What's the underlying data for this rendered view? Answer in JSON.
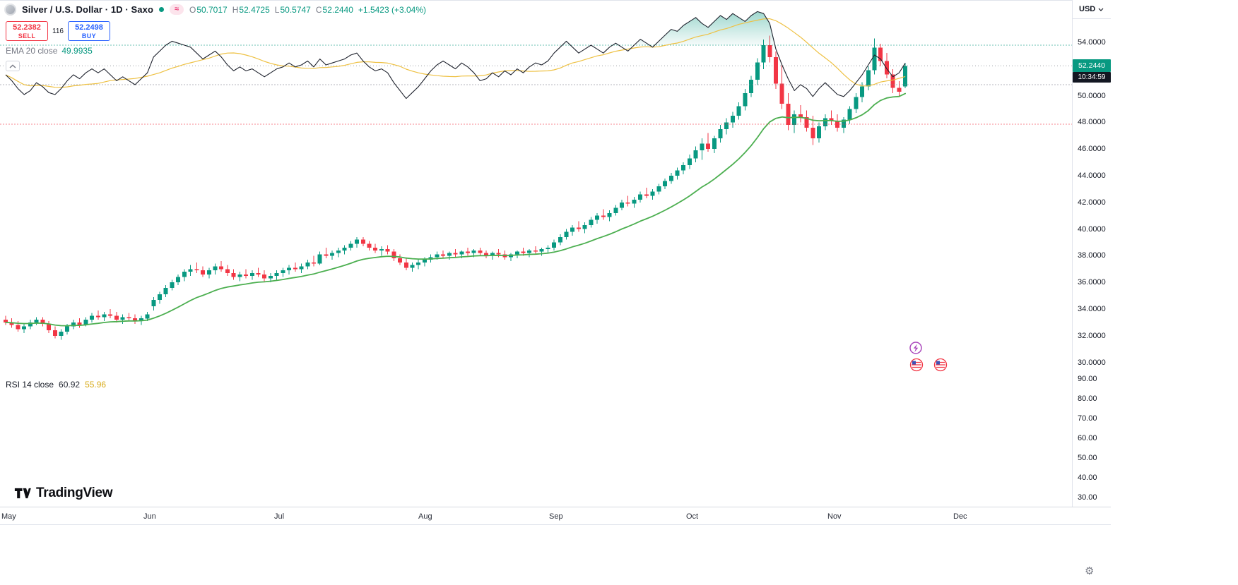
{
  "header": {
    "symbol_title": "Silver / U.S. Dollar · 1D · Saxo",
    "delayed_badge": "≈",
    "ohlc": {
      "o_label": "O",
      "o": "50.7017",
      "h_label": "H",
      "h": "52.4725",
      "l_label": "L",
      "l": "50.5747",
      "c_label": "C",
      "c": "52.2440",
      "change": "+1.5423 (+3.04%)"
    }
  },
  "trade_panel": {
    "sell_price": "52.2382",
    "sell_label": "SELL",
    "spread": "116",
    "buy_price": "52.2498",
    "buy_label": "BUY"
  },
  "ema_legend": {
    "label": "EMA 20 close",
    "value": "49.9935"
  },
  "rsi_legend": {
    "label": "RSI 14 close",
    "value": "60.92",
    "ma_value": "55.96"
  },
  "axis": {
    "currency": "USD",
    "current_price": "52.2440",
    "countdown": "10:34:59",
    "price_ticks": [
      "54.0000",
      "50.0000",
      "48.0000",
      "46.0000",
      "44.0000",
      "42.0000",
      "40.0000",
      "38.0000",
      "36.0000",
      "34.0000",
      "32.0000",
      "30.0000"
    ],
    "rsi_ticks": [
      "90.00",
      "80.00",
      "70.00",
      "60.00",
      "50.00",
      "40.00",
      "30.00"
    ]
  },
  "watermark": {
    "brand": "TradingView"
  },
  "colors": {
    "up": "#089981",
    "down": "#f23645",
    "ema": "#4caf50",
    "rsi_line": "#1e222d",
    "rsi_ma": "#eec143",
    "sell": "#f23645",
    "buy": "#2962ff"
  },
  "chart_data": {
    "type": "candlestick",
    "title": "Silver / U.S. Dollar · 1D · Saxo",
    "timeframe": "1D",
    "months": [
      "May",
      "Jun",
      "Jul",
      "Aug",
      "Sep",
      "Oct",
      "Nov",
      "Dec"
    ],
    "last_close": 52.244,
    "price_axis_range": [
      30,
      54.5
    ],
    "rsi_axis_range": [
      30,
      90
    ],
    "rsi_bands": {
      "upper": 70,
      "middle": 50,
      "lower": 30
    },
    "indicators": [
      {
        "name": "EMA",
        "period": 20,
        "value": 49.9935
      },
      {
        "name": "RSI",
        "period": 14,
        "value": 60.92,
        "ma_value": 55.96
      }
    ],
    "candles": [
      [
        33.2,
        33.5,
        32.8,
        33.0
      ],
      [
        33.0,
        33.3,
        32.6,
        32.8
      ],
      [
        32.8,
        33.1,
        32.3,
        32.5
      ],
      [
        32.5,
        32.9,
        32.2,
        32.7
      ],
      [
        32.7,
        33.2,
        32.5,
        33.0
      ],
      [
        33.0,
        33.4,
        32.8,
        33.2
      ],
      [
        33.2,
        33.4,
        32.7,
        32.9
      ],
      [
        32.9,
        33.1,
        32.2,
        32.4
      ],
      [
        32.4,
        32.7,
        31.8,
        32.0
      ],
      [
        32.0,
        32.5,
        31.7,
        32.3
      ],
      [
        32.3,
        32.9,
        32.1,
        32.7
      ],
      [
        32.7,
        33.2,
        32.5,
        33.0
      ],
      [
        33.0,
        33.3,
        32.6,
        32.8
      ],
      [
        32.8,
        33.4,
        32.7,
        33.2
      ],
      [
        33.2,
        33.7,
        33.0,
        33.5
      ],
      [
        33.5,
        33.9,
        33.2,
        33.4
      ],
      [
        33.4,
        33.8,
        33.1,
        33.6
      ],
      [
        33.6,
        34.0,
        33.3,
        33.5
      ],
      [
        33.5,
        33.8,
        33.0,
        33.2
      ],
      [
        33.2,
        33.6,
        32.9,
        33.4
      ],
      [
        33.4,
        33.7,
        33.1,
        33.3
      ],
      [
        33.3,
        33.6,
        32.9,
        33.1
      ],
      [
        33.1,
        33.5,
        32.8,
        33.3
      ],
      [
        33.3,
        33.8,
        33.1,
        33.6
      ],
      [
        34.2,
        34.9,
        33.9,
        34.7
      ],
      [
        34.7,
        35.3,
        34.4,
        35.1
      ],
      [
        35.1,
        35.8,
        34.9,
        35.6
      ],
      [
        35.6,
        36.2,
        35.4,
        36.0
      ],
      [
        36.0,
        36.6,
        35.8,
        36.4
      ],
      [
        36.4,
        37.0,
        36.1,
        36.8
      ],
      [
        36.8,
        37.3,
        36.5,
        37.0
      ],
      [
        37.0,
        37.5,
        36.7,
        36.9
      ],
      [
        36.9,
        37.2,
        36.4,
        36.6
      ],
      [
        36.6,
        37.1,
        36.3,
        36.9
      ],
      [
        36.9,
        37.4,
        36.6,
        37.2
      ],
      [
        37.2,
        37.6,
        36.8,
        37.0
      ],
      [
        37.0,
        37.3,
        36.5,
        36.7
      ],
      [
        36.7,
        37.0,
        36.2,
        36.4
      ],
      [
        36.4,
        36.8,
        36.1,
        36.6
      ],
      [
        36.6,
        37.0,
        36.3,
        36.5
      ],
      [
        36.5,
        36.9,
        36.2,
        36.7
      ],
      [
        36.7,
        37.1,
        36.4,
        36.6
      ],
      [
        36.6,
        36.9,
        36.1,
        36.3
      ],
      [
        36.3,
        36.7,
        36.0,
        36.5
      ],
      [
        36.5,
        36.9,
        36.2,
        36.7
      ],
      [
        36.7,
        37.1,
        36.4,
        36.9
      ],
      [
        36.9,
        37.3,
        36.6,
        37.1
      ],
      [
        37.1,
        37.5,
        36.8,
        37.0
      ],
      [
        37.0,
        37.4,
        36.7,
        37.2
      ],
      [
        37.2,
        37.7,
        37.0,
        37.5
      ],
      [
        37.5,
        38.0,
        37.2,
        37.4
      ],
      [
        37.4,
        38.3,
        37.3,
        38.1
      ],
      [
        38.1,
        38.6,
        37.8,
        38.0
      ],
      [
        38.0,
        38.4,
        37.7,
        38.2
      ],
      [
        38.2,
        38.6,
        37.9,
        38.4
      ],
      [
        38.4,
        38.8,
        38.1,
        38.6
      ],
      [
        38.6,
        39.1,
        38.4,
        38.9
      ],
      [
        38.9,
        39.4,
        38.6,
        39.2
      ],
      [
        39.2,
        39.4,
        38.7,
        38.9
      ],
      [
        38.9,
        39.1,
        38.4,
        38.6
      ],
      [
        38.6,
        38.9,
        38.2,
        38.4
      ],
      [
        38.4,
        38.7,
        38.0,
        38.5
      ],
      [
        38.5,
        38.8,
        38.1,
        38.3
      ],
      [
        38.3,
        38.5,
        37.6,
        37.8
      ],
      [
        37.8,
        38.1,
        37.3,
        37.5
      ],
      [
        37.5,
        37.8,
        36.9,
        37.1
      ],
      [
        37.1,
        37.5,
        36.8,
        37.3
      ],
      [
        37.3,
        37.7,
        37.0,
        37.5
      ],
      [
        37.5,
        37.9,
        37.2,
        37.7
      ],
      [
        37.7,
        38.1,
        37.5,
        37.9
      ],
      [
        37.9,
        38.3,
        37.7,
        38.1
      ],
      [
        38.1,
        38.4,
        37.8,
        38.0
      ],
      [
        38.0,
        38.3,
        37.7,
        38.2
      ],
      [
        38.2,
        38.5,
        37.9,
        38.1
      ],
      [
        38.1,
        38.4,
        37.8,
        38.3
      ],
      [
        38.3,
        38.6,
        38.0,
        38.2
      ],
      [
        38.2,
        38.5,
        37.9,
        38.4
      ],
      [
        38.4,
        38.6,
        38.0,
        38.2
      ],
      [
        38.2,
        38.4,
        37.8,
        38.0
      ],
      [
        38.0,
        38.3,
        37.7,
        38.2
      ],
      [
        38.2,
        38.5,
        37.9,
        38.1
      ],
      [
        38.1,
        38.4,
        37.7,
        37.9
      ],
      [
        37.9,
        38.2,
        37.6,
        38.1
      ],
      [
        38.1,
        38.4,
        37.8,
        38.3
      ],
      [
        38.3,
        38.6,
        38.0,
        38.2
      ],
      [
        38.2,
        38.5,
        37.9,
        38.4
      ],
      [
        38.4,
        38.7,
        38.1,
        38.3
      ],
      [
        38.3,
        38.6,
        38.0,
        38.5
      ],
      [
        38.5,
        38.8,
        38.2,
        38.6
      ],
      [
        38.6,
        39.2,
        38.4,
        39.0
      ],
      [
        39.0,
        39.6,
        38.8,
        39.4
      ],
      [
        39.4,
        40.0,
        39.2,
        39.8
      ],
      [
        39.8,
        40.3,
        39.5,
        40.1
      ],
      [
        40.1,
        40.6,
        39.8,
        40.0
      ],
      [
        40.0,
        40.5,
        39.7,
        40.3
      ],
      [
        40.3,
        40.9,
        40.1,
        40.7
      ],
      [
        40.7,
        41.2,
        40.4,
        41.0
      ],
      [
        41.0,
        41.5,
        40.7,
        40.9
      ],
      [
        40.9,
        41.4,
        40.6,
        41.2
      ],
      [
        41.2,
        41.8,
        41.0,
        41.6
      ],
      [
        41.6,
        42.2,
        41.4,
        42.0
      ],
      [
        42.0,
        42.5,
        41.7,
        41.9
      ],
      [
        41.9,
        42.4,
        41.6,
        42.2
      ],
      [
        42.2,
        42.8,
        42.0,
        42.6
      ],
      [
        42.6,
        43.1,
        42.3,
        42.5
      ],
      [
        42.5,
        43.0,
        42.2,
        42.8
      ],
      [
        42.8,
        43.4,
        42.6,
        43.2
      ],
      [
        43.2,
        43.8,
        43.0,
        43.6
      ],
      [
        43.6,
        44.2,
        43.4,
        44.0
      ],
      [
        44.0,
        44.6,
        43.7,
        44.4
      ],
      [
        44.4,
        45.0,
        44.1,
        44.8
      ],
      [
        44.8,
        45.6,
        44.5,
        45.3
      ],
      [
        45.3,
        46.2,
        45.0,
        45.9
      ],
      [
        45.9,
        46.8,
        45.2,
        46.4
      ],
      [
        46.4,
        47.2,
        45.8,
        46.0
      ],
      [
        46.0,
        47.0,
        45.7,
        46.8
      ],
      [
        46.8,
        47.8,
        46.5,
        47.5
      ],
      [
        47.5,
        48.3,
        47.1,
        48.0
      ],
      [
        48.0,
        48.8,
        47.6,
        48.5
      ],
      [
        48.5,
        49.5,
        48.2,
        49.2
      ],
      [
        49.2,
        50.5,
        48.9,
        50.2
      ],
      [
        50.2,
        51.5,
        49.9,
        51.2
      ],
      [
        51.2,
        52.8,
        50.8,
        52.5
      ],
      [
        52.5,
        54.2,
        52.0,
        53.8
      ],
      [
        53.8,
        54.5,
        52.5,
        52.9
      ],
      [
        52.9,
        53.3,
        50.5,
        50.9
      ],
      [
        50.9,
        52.3,
        49.0,
        49.4
      ],
      [
        49.4,
        50.2,
        47.4,
        47.8
      ],
      [
        47.8,
        48.9,
        47.2,
        48.6
      ],
      [
        48.6,
        49.3,
        48.0,
        48.4
      ],
      [
        48.4,
        48.9,
        47.3,
        47.6
      ],
      [
        47.6,
        48.5,
        46.3,
        46.8
      ],
      [
        46.8,
        48.0,
        46.5,
        47.7
      ],
      [
        47.7,
        48.6,
        47.4,
        48.3
      ],
      [
        48.3,
        48.9,
        47.8,
        48.1
      ],
      [
        48.1,
        48.6,
        47.3,
        47.6
      ],
      [
        47.6,
        48.4,
        47.2,
        48.2
      ],
      [
        48.2,
        49.2,
        47.9,
        49.0
      ],
      [
        49.0,
        50.2,
        48.7,
        49.9
      ],
      [
        49.9,
        51.0,
        49.5,
        50.7
      ],
      [
        50.7,
        52.2,
        50.4,
        51.9
      ],
      [
        51.9,
        54.3,
        51.6,
        53.6
      ],
      [
        53.6,
        53.9,
        52.2,
        52.6
      ],
      [
        52.6,
        53.2,
        51.3,
        51.6
      ],
      [
        51.6,
        52.0,
        50.2,
        50.6
      ],
      [
        50.6,
        51.1,
        49.9,
        50.3
      ],
      [
        50.7,
        52.47,
        50.57,
        52.24
      ]
    ],
    "rsi": [
      55,
      52,
      48,
      45,
      47,
      51,
      49,
      46,
      45,
      48,
      52,
      55,
      53,
      56,
      58,
      56,
      58,
      55,
      52,
      54,
      52,
      50,
      53,
      56,
      64,
      67,
      70,
      72,
      71,
      70,
      69,
      66,
      63,
      65,
      67,
      64,
      60,
      57,
      59,
      57,
      58,
      56,
      54,
      56,
      58,
      59,
      61,
      59,
      60,
      62,
      59,
      63,
      60,
      61,
      62,
      63,
      65,
      66,
      62,
      59,
      57,
      58,
      56,
      51,
      47,
      43,
      46,
      49,
      53,
      57,
      60,
      62,
      60,
      58,
      61,
      59,
      56,
      52,
      53,
      56,
      54,
      57,
      55,
      58,
      56,
      59,
      61,
      60,
      62,
      66,
      69,
      72,
      69,
      66,
      68,
      70,
      68,
      66,
      69,
      71,
      69,
      67,
      70,
      73,
      71,
      69,
      72,
      75,
      78,
      77,
      80,
      82,
      84,
      81,
      79,
      82,
      85,
      83,
      86,
      84,
      82,
      85,
      87,
      86,
      81,
      68,
      60,
      53,
      47,
      50,
      48,
      44,
      48,
      51,
      48,
      45,
      44,
      47,
      51,
      55,
      60,
      65,
      63,
      58,
      54,
      56,
      60.92
    ]
  }
}
